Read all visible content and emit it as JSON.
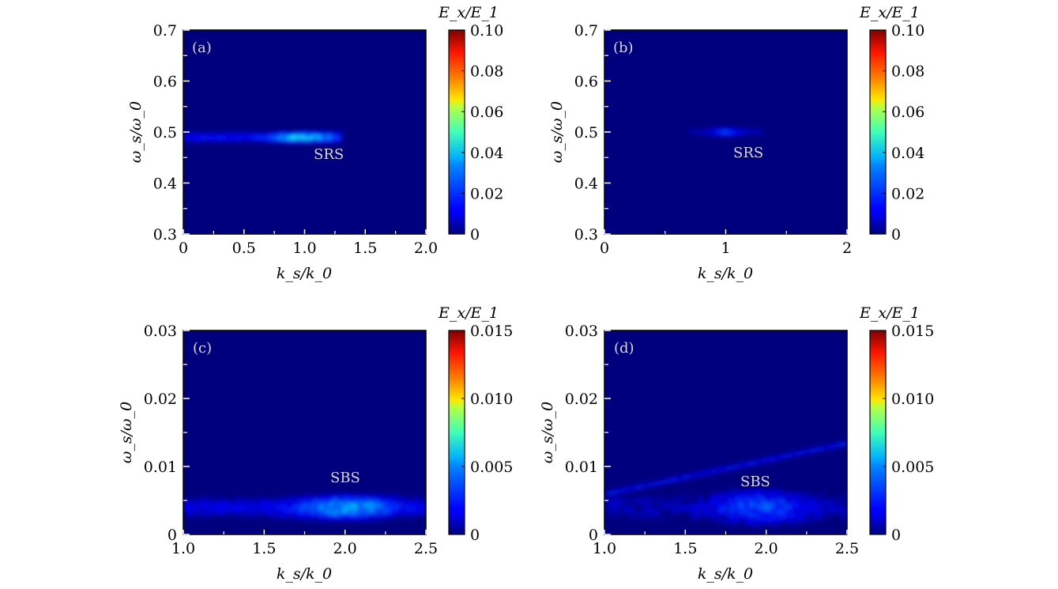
{
  "figure": {
    "colormap": "jet",
    "background_color": "#00007f",
    "panels": [
      {
        "id": "a",
        "panel_label": "(a)",
        "annotation": "SRS",
        "xlabel": "k_s/k_0",
        "ylabel": "ω_s/ω_0",
        "colorbar_label": "E_x/E_1"
      },
      {
        "id": "b",
        "panel_label": "(b)",
        "annotation": "SRS",
        "xlabel": "k_s/k_0",
        "ylabel": "ω_s/ω_0",
        "colorbar_label": "E_x/E_1"
      },
      {
        "id": "c",
        "panel_label": "(c)",
        "annotation": "SBS",
        "xlabel": "k_s/k_0",
        "ylabel": "ω_s/ω_0",
        "colorbar_label": "E_x/E_1"
      },
      {
        "id": "d",
        "panel_label": "(d)",
        "annotation": "SBS",
        "xlabel": "k_s/k_0",
        "ylabel": "ω_s/ω_0",
        "colorbar_label": "E_x/E_1"
      }
    ]
  },
  "chart_data": [
    {
      "type": "heatmap",
      "panel": "(a)",
      "xlabel": "k_s/k_0",
      "ylabel": "ω_s/ω_0",
      "xlim": [
        0,
        2.0
      ],
      "ylim": [
        0.3,
        0.7
      ],
      "xticks": [
        "0",
        "0.5",
        "1.0",
        "1.5",
        "2.0"
      ],
      "yticks": [
        "0.3",
        "0.4",
        "0.5",
        "0.6",
        "0.7"
      ],
      "colorbar": {
        "label": "E_x/E_1",
        "range": [
          0,
          0.1
        ],
        "ticks": [
          "0",
          "0.02",
          "0.04",
          "0.06",
          "0.08",
          "0.10"
        ]
      },
      "annotation": {
        "text": "SRS",
        "x": 1.22,
        "y": 0.455
      },
      "features": [
        {
          "x_range": [
            0,
            1.3
          ],
          "y_center": 0.49,
          "y_halfwidth": 0.012,
          "peak_x": 0.98,
          "peak_value": 0.05
        }
      ]
    },
    {
      "type": "heatmap",
      "panel": "(b)",
      "xlabel": "k_s/k_0",
      "ylabel": "ω_s/ω_0",
      "xlim": [
        0,
        2
      ],
      "ylim": [
        0.3,
        0.7
      ],
      "xticks": [
        "0",
        "1",
        "2"
      ],
      "yticks": [
        "0.3",
        "0.4",
        "0.5",
        "0.6",
        "0.7"
      ],
      "colorbar": {
        "label": "E_x/E_1",
        "range": [
          0,
          0.1
        ],
        "ticks": [
          "0",
          "0.02",
          "0.04",
          "0.06",
          "0.08",
          "0.10"
        ]
      },
      "annotation": {
        "text": "SRS",
        "x": 1.2,
        "y": 0.455
      },
      "features": [
        {
          "x_range": [
            0.7,
            1.3
          ],
          "y_center": 0.5,
          "y_halfwidth": 0.01,
          "peak_x": 1.0,
          "peak_value": 0.025
        }
      ]
    },
    {
      "type": "heatmap",
      "panel": "(c)",
      "xlabel": "k_s/k_0",
      "ylabel": "ω_s/ω_0",
      "xlim": [
        1.0,
        2.5
      ],
      "ylim": [
        0,
        0.03
      ],
      "xticks": [
        "1.0",
        "1.5",
        "2.0",
        "2.5"
      ],
      "yticks": [
        "0",
        "0.01",
        "0.02",
        "0.03"
      ],
      "colorbar": {
        "label": "E_x/E_1",
        "range": [
          0,
          0.015
        ],
        "ticks": [
          "0",
          "0.005",
          "0.010",
          "0.015"
        ]
      },
      "annotation": {
        "text": "SBS",
        "x": 2.02,
        "y": 0.0085
      },
      "features": [
        {
          "x_range": [
            1.0,
            2.5
          ],
          "y_center": 0.004,
          "y_halfwidth": 0.002,
          "peak_x": 2.0,
          "peak_value": 0.006
        }
      ]
    },
    {
      "type": "heatmap",
      "panel": "(d)",
      "xlabel": "k_s/k_0",
      "ylabel": "ω_s/ω_0",
      "xlim": [
        1.0,
        2.5
      ],
      "ylim": [
        0,
        0.03
      ],
      "xticks": [
        "1.0",
        "1.5",
        "2.0",
        "2.5"
      ],
      "yticks": [
        "0",
        "0.01",
        "0.02",
        "0.03"
      ],
      "colorbar": {
        "label": "E_x/E_1",
        "range": [
          0,
          0.015
        ],
        "ticks": [
          "0",
          "0.005",
          "0.010",
          "0.015"
        ]
      },
      "annotation": {
        "text": "SBS",
        "x": 1.93,
        "y": 0.0078
      },
      "features": [
        {
          "x_range": [
            1.0,
            2.5
          ],
          "y_center": 0.004,
          "y_halfwidth": 0.003,
          "peak_x": 1.95,
          "peak_value": 0.004
        },
        {
          "x_range": [
            1.0,
            2.5
          ],
          "y_start": 0.006,
          "y_end": 0.0135,
          "peak_value": 0.003
        }
      ]
    }
  ]
}
